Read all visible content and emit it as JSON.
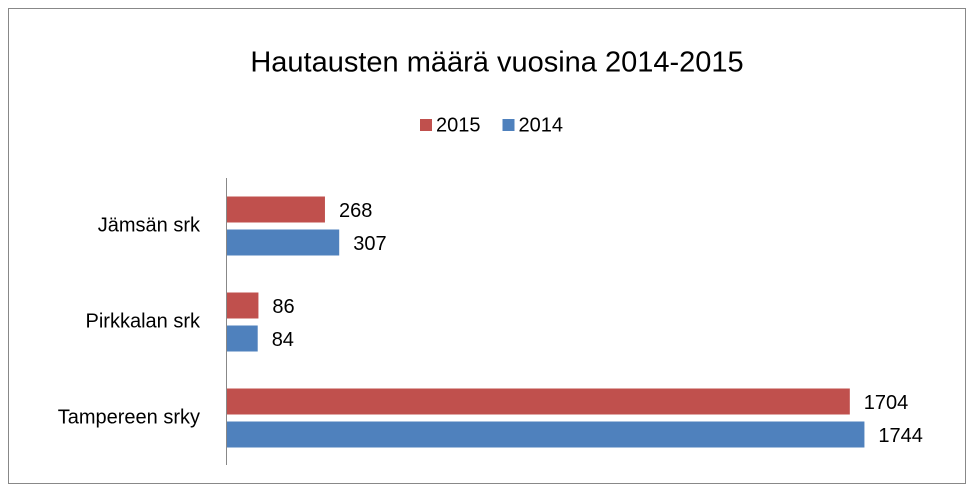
{
  "chart_data": {
    "type": "bar",
    "orientation": "horizontal",
    "title": "Hautausten määrä vuosina 2014-2015",
    "categories": [
      "Jämsän srk",
      "Pirkkalan srk",
      "Tampereen srky"
    ],
    "series": [
      {
        "name": "2015",
        "color": "#c0504d",
        "values": [
          268,
          86,
          1704
        ]
      },
      {
        "name": "2014",
        "color": "#4f81bd",
        "values": [
          307,
          84,
          1744
        ]
      }
    ],
    "xlim": [
      0,
      2000
    ],
    "legend": "top"
  }
}
